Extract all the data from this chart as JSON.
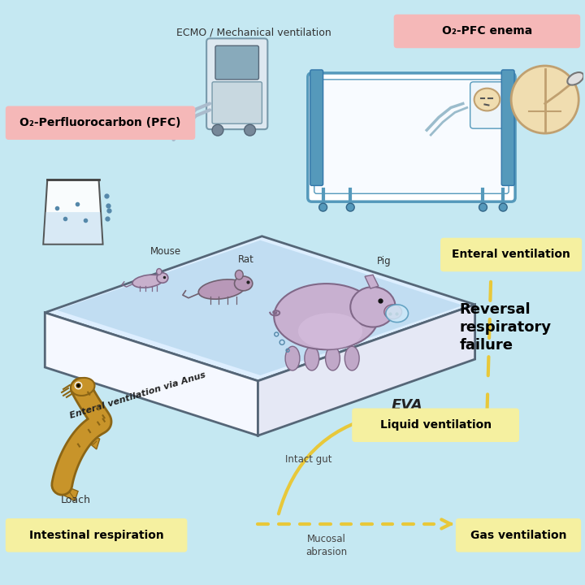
{
  "bg_color": "#c5e8f2",
  "label_pink_bg": "#f5b8b8",
  "label_yellow_bg": "#f5f0a0",
  "labels": {
    "pfc": "O₂-Perfluorocarbon (PFC)",
    "enema": "O₂-PFC enema",
    "ecmo": "ECMO / Mechanical ventilation",
    "enteral_ventilation": "Enteral ventilation",
    "reversal": "Reversal\nrespiratory\nfailure",
    "liquid": "Liquid ventilation",
    "gas": "Gas ventilation",
    "intestinal": "Intestinal respiration",
    "eva_label": "Enteral ventilation via Anus",
    "eva": "EVA",
    "mouse": "Mouse",
    "rat": "Rat",
    "pig": "Pig",
    "loach": "Loach",
    "intact_gut": "Intact gut",
    "mucosal": "Mucosal\nabrasion"
  },
  "arrow_color": "#e8c83a",
  "tray_top_color": "#ddeeff",
  "tray_front_color": "#f0f4ff",
  "tray_right_color": "#e8eeff",
  "water_color": "#b8d8ee",
  "pig_body_color": "#c8b0d0",
  "pig_belly_color": "#d8c0e0",
  "animal_edge_color": "#907898",
  "loach_main": "#c8942a",
  "loach_dark": "#8B6515",
  "bed_blue": "#5599bb",
  "skin_color": "#f0ddb0",
  "skin_edge": "#c0a070"
}
